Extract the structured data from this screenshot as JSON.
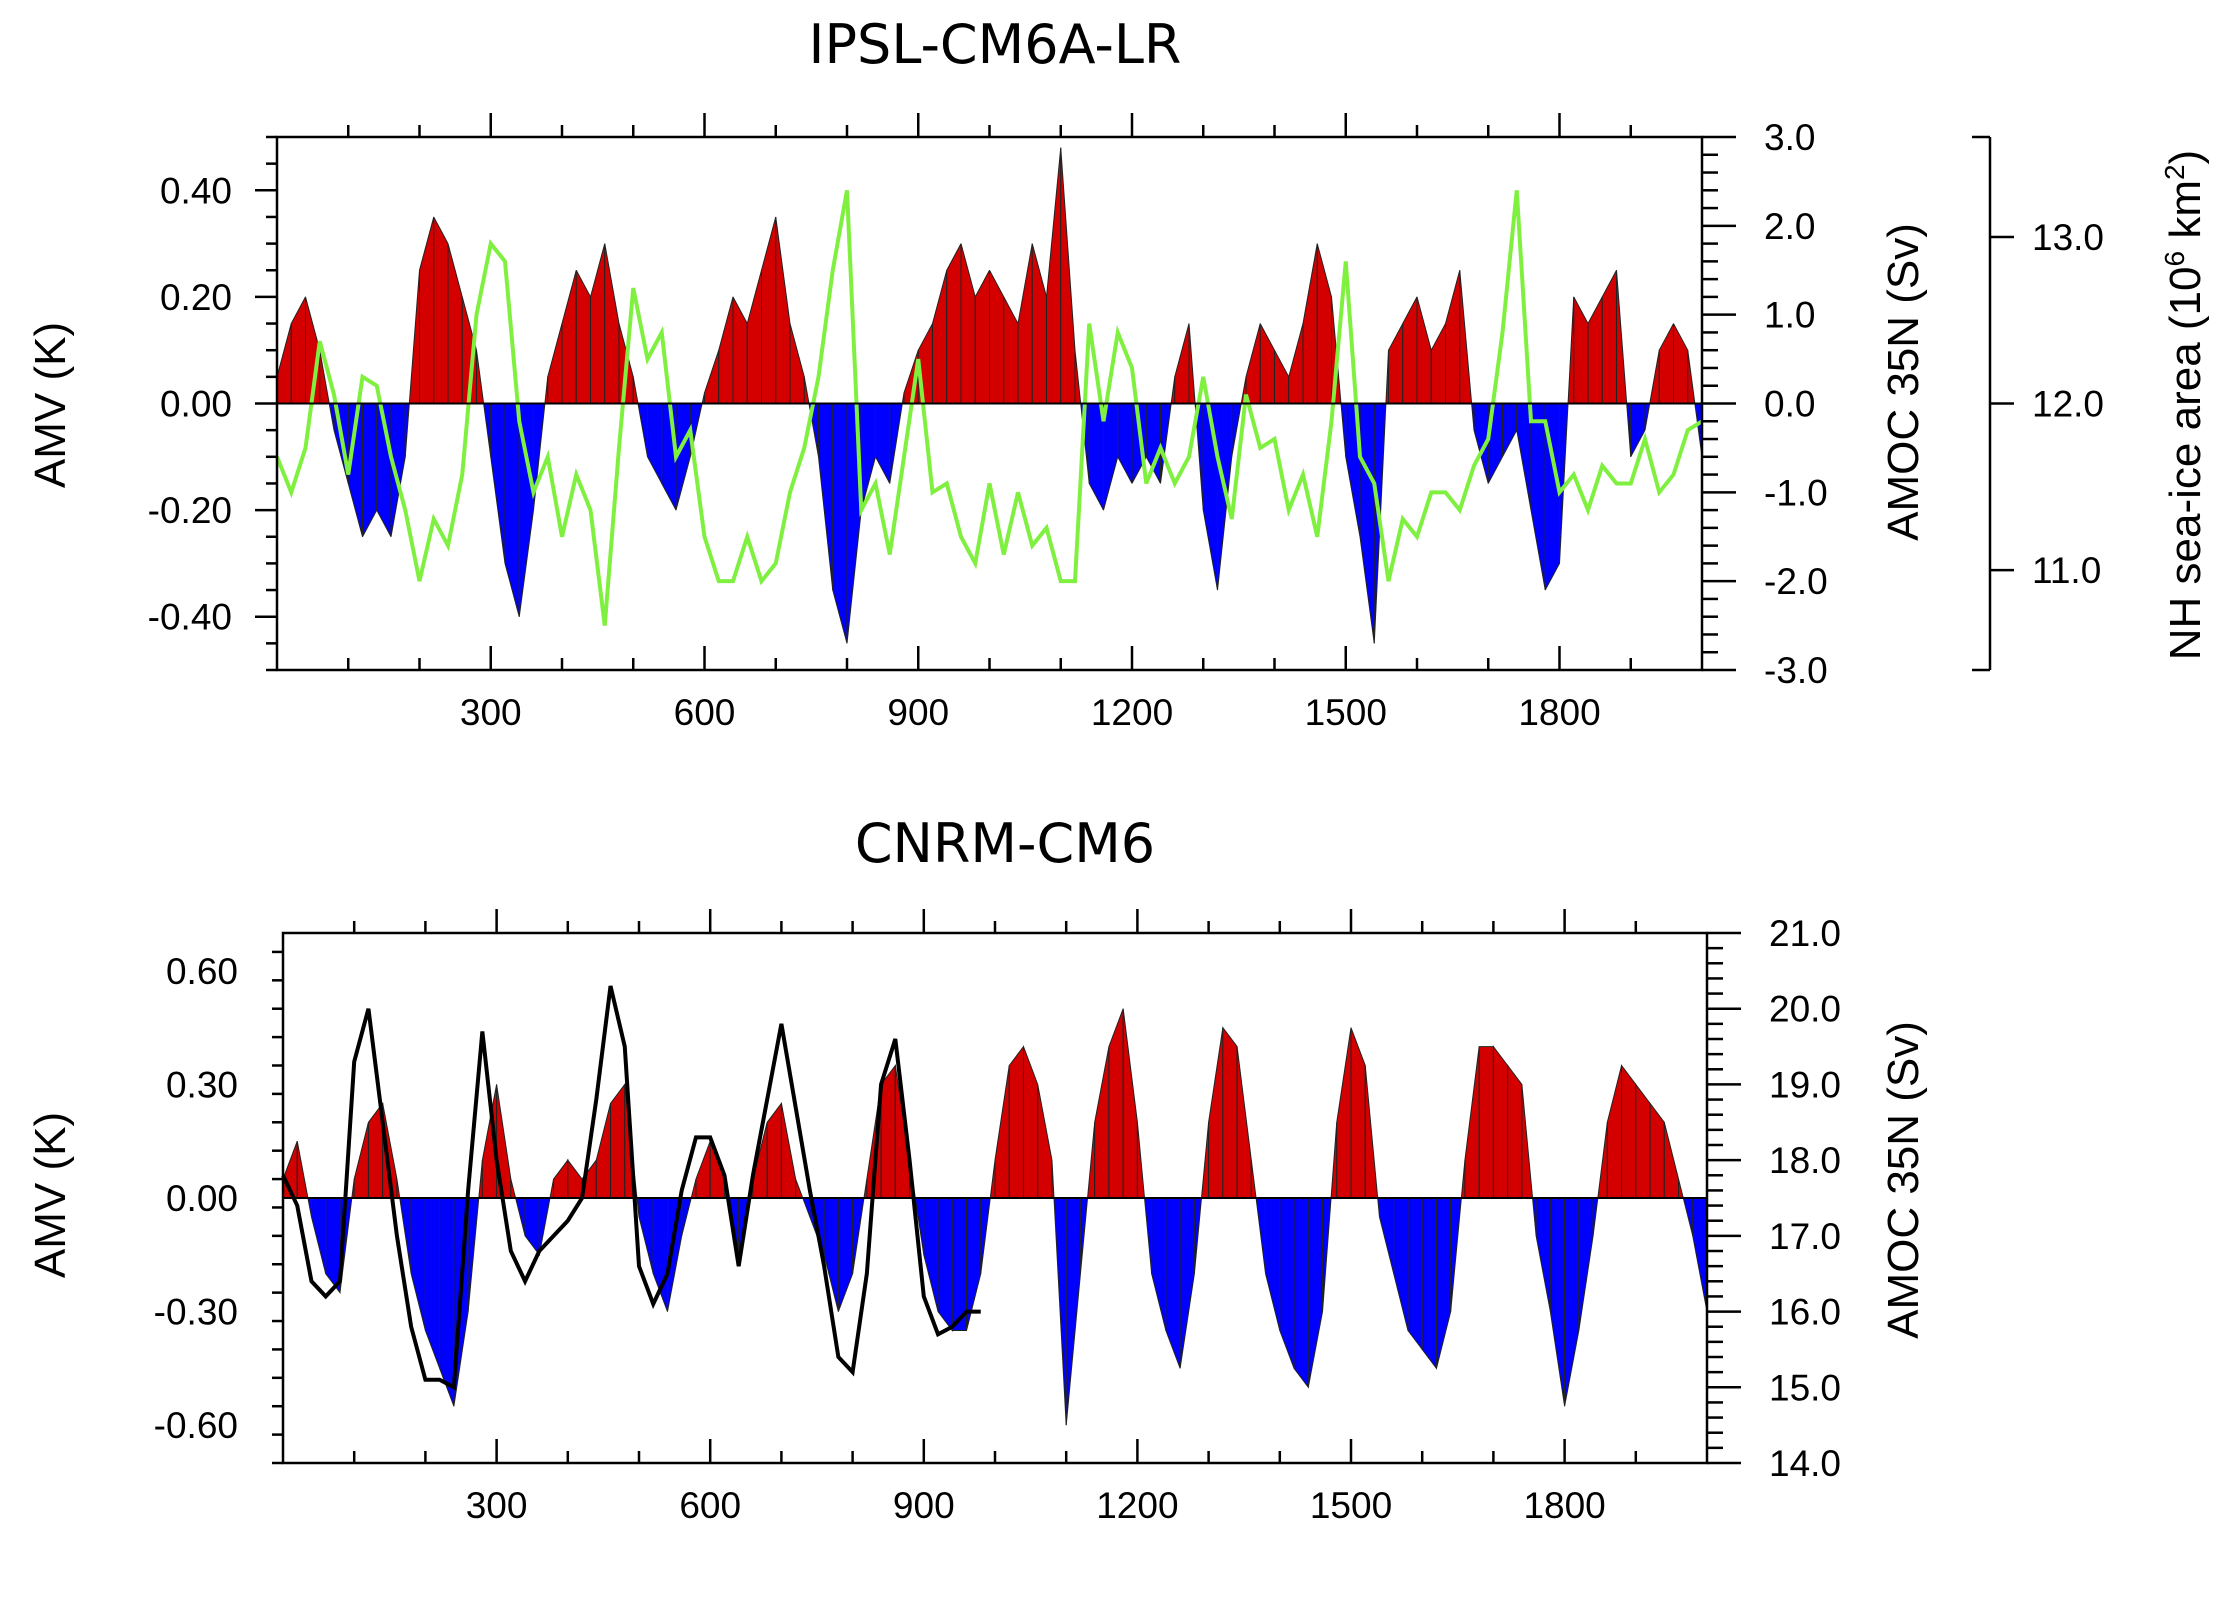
{
  "chart_data": [
    {
      "type": "area",
      "title": "IPSL-CM6A-LR",
      "x_ticks": [
        300,
        600,
        900,
        1200,
        1500,
        1800
      ],
      "xlim": [
        0,
        2000
      ],
      "left_axis": {
        "label": "AMV (K)",
        "ylim": [
          -0.5,
          0.5
        ],
        "ticks": [
          0.4,
          0.2,
          0.0,
          -0.2,
          -0.4
        ],
        "tick_labels": [
          "0.40",
          "0.20",
          "0.00",
          "-0.20",
          "-0.40"
        ]
      },
      "right_axis": {
        "label": "AMOC 35N (Sv)",
        "ylim": [
          -3.0,
          3.0
        ],
        "ticks": [
          3,
          2,
          1,
          0,
          -1,
          -2,
          -3
        ],
        "tick_labels": [
          "3.0",
          "2.0",
          "1.0",
          "0.0",
          "-1.0",
          "-2.0",
          "-3.0"
        ]
      },
      "far_right_axis": {
        "label_main": "NH sea-ice area (10",
        "label_sup": "6",
        "label_end": " km",
        "label_sup2": "2",
        "label_close": ")",
        "ylim": [
          10.4,
          13.6
        ],
        "ticks": [
          13.0,
          12.0,
          11.0
        ],
        "tick_labels": [
          "13.0",
          "12.0",
          "11.0"
        ]
      },
      "series": [
        {
          "style": "filled-anomaly",
          "axis": "left",
          "positive_color": "#d40000",
          "negative_color": "#0000ff",
          "x": [
            0,
            20,
            40,
            60,
            80,
            100,
            120,
            140,
            160,
            180,
            200,
            220,
            240,
            260,
            280,
            300,
            320,
            340,
            360,
            380,
            400,
            420,
            440,
            460,
            480,
            500,
            520,
            540,
            560,
            580,
            600,
            620,
            640,
            660,
            680,
            700,
            720,
            740,
            760,
            780,
            800,
            820,
            840,
            860,
            880,
            900,
            920,
            940,
            960,
            980,
            1000,
            1020,
            1040,
            1060,
            1080,
            1100,
            1120,
            1140,
            1160,
            1180,
            1200,
            1220,
            1240,
            1260,
            1280,
            1300,
            1320,
            1340,
            1360,
            1380,
            1400,
            1420,
            1440,
            1460,
            1480,
            1500,
            1520,
            1540,
            1560,
            1580,
            1600,
            1620,
            1640,
            1660,
            1680,
            1700,
            1720,
            1740,
            1760,
            1780,
            1800,
            1820,
            1840,
            1860,
            1880,
            1900,
            1920,
            1940,
            1960,
            1980,
            2000
          ],
          "values": [
            0.05,
            0.15,
            0.2,
            0.1,
            -0.05,
            -0.15,
            -0.25,
            -0.2,
            -0.25,
            -0.1,
            0.25,
            0.35,
            0.3,
            0.2,
            0.1,
            -0.1,
            -0.3,
            -0.4,
            -0.2,
            0.05,
            0.15,
            0.25,
            0.2,
            0.3,
            0.15,
            0.05,
            -0.1,
            -0.15,
            -0.2,
            -0.1,
            0.02,
            0.1,
            0.2,
            0.15,
            0.25,
            0.35,
            0.15,
            0.05,
            -0.1,
            -0.35,
            -0.45,
            -0.2,
            -0.1,
            -0.15,
            0.02,
            0.1,
            0.15,
            0.25,
            0.3,
            0.2,
            0.25,
            0.2,
            0.15,
            0.3,
            0.2,
            0.48,
            0.1,
            -0.15,
            -0.2,
            -0.1,
            -0.15,
            -0.1,
            -0.15,
            0.05,
            0.15,
            -0.2,
            -0.35,
            -0.1,
            0.05,
            0.15,
            0.1,
            0.05,
            0.15,
            0.3,
            0.2,
            -0.1,
            -0.25,
            -0.45,
            0.1,
            0.15,
            0.2,
            0.1,
            0.15,
            0.25,
            -0.05,
            -0.15,
            -0.1,
            -0.05,
            -0.2,
            -0.35,
            -0.3,
            0.2,
            0.15,
            0.2,
            0.25,
            -0.1,
            -0.05,
            0.1,
            0.15,
            0.1,
            -0.1
          ]
        },
        {
          "style": "line",
          "axis": "right",
          "color": "#80f040",
          "x": [
            0,
            20,
            40,
            60,
            80,
            100,
            120,
            140,
            160,
            180,
            200,
            220,
            240,
            260,
            280,
            300,
            320,
            340,
            360,
            380,
            400,
            420,
            440,
            460,
            480,
            500,
            520,
            540,
            560,
            580,
            600,
            620,
            640,
            660,
            680,
            700,
            720,
            740,
            760,
            780,
            800,
            820,
            840,
            860,
            880,
            900,
            920,
            940,
            960,
            980,
            1000,
            1020,
            1040,
            1060,
            1080,
            1100,
            1120,
            1140,
            1160,
            1180,
            1200,
            1220,
            1240,
            1260,
            1280,
            1300,
            1320,
            1340,
            1360,
            1380,
            1400,
            1420,
            1440,
            1460,
            1480,
            1500,
            1520,
            1540,
            1560,
            1580,
            1600,
            1620,
            1640,
            1660,
            1680,
            1700,
            1720,
            1740,
            1760,
            1780,
            1800,
            1820,
            1840,
            1860,
            1880,
            1900,
            1920,
            1940,
            1960,
            1980,
            2000
          ],
          "values": [
            -0.6,
            -1.0,
            -0.5,
            0.7,
            0.1,
            -0.8,
            0.3,
            0.2,
            -0.6,
            -1.2,
            -2.0,
            -1.3,
            -1.6,
            -0.8,
            1.0,
            1.8,
            1.6,
            -0.2,
            -1.0,
            -0.6,
            -1.5,
            -0.8,
            -1.2,
            -2.5,
            -0.5,
            1.3,
            0.5,
            0.8,
            -0.6,
            -0.3,
            -1.5,
            -2.0,
            -2.0,
            -1.5,
            -2.0,
            -1.8,
            -1.0,
            -0.5,
            0.3,
            1.5,
            2.4,
            -1.2,
            -0.9,
            -1.7,
            -0.6,
            0.5,
            -1.0,
            -0.9,
            -1.5,
            -1.8,
            -0.9,
            -1.7,
            -1.0,
            -1.6,
            -1.4,
            -2.0,
            -2.0,
            0.9,
            -0.2,
            0.8,
            0.4,
            -0.9,
            -0.5,
            -0.9,
            -0.6,
            0.3,
            -0.6,
            -1.3,
            0.1,
            -0.5,
            -0.4,
            -1.2,
            -0.8,
            -1.5,
            -0.2,
            1.6,
            -0.6,
            -0.9,
            -2.0,
            -1.3,
            -1.5,
            -1.0,
            -1.0,
            -1.2,
            -0.7,
            -0.4,
            0.8,
            2.4,
            -0.2,
            -0.2,
            -1.0,
            -0.8,
            -1.2,
            -0.7,
            -0.9,
            -0.9,
            -0.4,
            -1.0,
            -0.8,
            -0.3,
            -0.2
          ]
        }
      ]
    },
    {
      "type": "area",
      "title": "CNRM-CM6",
      "x_ticks": [
        300,
        600,
        900,
        1200,
        1500,
        1800
      ],
      "xlim": [
        0,
        2000
      ],
      "left_axis": {
        "label": "AMV (K)",
        "ylim": [
          -0.7,
          0.7
        ],
        "ticks": [
          0.6,
          0.3,
          0.0,
          -0.3,
          -0.6
        ],
        "tick_labels": [
          "0.60",
          "0.30",
          "0.00",
          "-0.30",
          "-0.60"
        ]
      },
      "right_axis": {
        "label": "AMOC 35N (Sv)",
        "ylim": [
          14.0,
          21.0
        ],
        "ticks": [
          21,
          20,
          19,
          18,
          17,
          16,
          15,
          14
        ],
        "tick_labels": [
          "21.0",
          "20.0",
          "19.0",
          "18.0",
          "17.0",
          "16.0",
          "15.0",
          "14.0"
        ]
      },
      "series": [
        {
          "style": "filled-anomaly",
          "axis": "left",
          "positive_color": "#d40000",
          "negative_color": "#0000ff",
          "x": [
            0,
            20,
            40,
            60,
            80,
            100,
            120,
            140,
            160,
            180,
            200,
            220,
            240,
            260,
            280,
            300,
            320,
            340,
            360,
            380,
            400,
            420,
            440,
            460,
            480,
            500,
            520,
            540,
            560,
            580,
            600,
            620,
            640,
            660,
            680,
            700,
            720,
            740,
            760,
            780,
            800,
            820,
            840,
            860,
            880,
            900,
            920,
            940,
            960,
            980,
            1000,
            1020,
            1040,
            1060,
            1080,
            1100,
            1120,
            1140,
            1160,
            1180,
            1200,
            1220,
            1240,
            1260,
            1280,
            1300,
            1320,
            1340,
            1360,
            1380,
            1400,
            1420,
            1440,
            1460,
            1480,
            1500,
            1520,
            1540,
            1560,
            1580,
            1600,
            1620,
            1640,
            1660,
            1680,
            1700,
            1720,
            1740,
            1760,
            1780,
            1800,
            1820,
            1840,
            1860,
            1880,
            1900,
            1920,
            1940,
            1960,
            1980,
            2000
          ],
          "values": [
            0.05,
            0.15,
            -0.05,
            -0.2,
            -0.25,
            0.05,
            0.2,
            0.25,
            0.05,
            -0.2,
            -0.35,
            -0.45,
            -0.55,
            -0.3,
            0.1,
            0.3,
            0.05,
            -0.1,
            -0.15,
            0.05,
            0.1,
            0.05,
            0.1,
            0.25,
            0.3,
            -0.05,
            -0.2,
            -0.3,
            -0.1,
            0.05,
            0.15,
            0.05,
            -0.15,
            0.05,
            0.2,
            0.25,
            0.05,
            -0.05,
            -0.15,
            -0.3,
            -0.2,
            0.05,
            0.3,
            0.35,
            0.1,
            -0.15,
            -0.3,
            -0.35,
            -0.35,
            -0.2,
            0.1,
            0.35,
            0.4,
            0.3,
            0.1,
            -0.6,
            -0.2,
            0.2,
            0.4,
            0.5,
            0.2,
            -0.2,
            -0.35,
            -0.45,
            -0.2,
            0.2,
            0.45,
            0.4,
            0.1,
            -0.2,
            -0.35,
            -0.45,
            -0.5,
            -0.3,
            0.2,
            0.45,
            0.35,
            -0.05,
            -0.2,
            -0.35,
            -0.4,
            -0.45,
            -0.3,
            0.1,
            0.4,
            0.4,
            0.35,
            0.3,
            -0.1,
            -0.3,
            -0.55,
            -0.35,
            -0.1,
            0.2,
            0.35,
            0.3,
            0.25,
            0.2,
            0.05,
            -0.1,
            -0.3
          ]
        },
        {
          "style": "line",
          "axis": "right",
          "color": "#000000",
          "x": [
            0,
            20,
            40,
            60,
            80,
            100,
            120,
            140,
            160,
            180,
            200,
            220,
            240,
            260,
            280,
            300,
            320,
            340,
            360,
            380,
            400,
            420,
            440,
            460,
            480,
            500,
            520,
            540,
            560,
            580,
            600,
            620,
            640,
            660,
            680,
            700,
            720,
            740,
            760,
            780,
            800,
            820,
            840,
            860,
            880,
            900,
            920,
            940,
            960,
            980
          ],
          "values": [
            17.8,
            17.4,
            16.4,
            16.2,
            16.4,
            19.3,
            20.0,
            18.5,
            17.0,
            15.8,
            15.1,
            15.1,
            15.0,
            17.6,
            19.7,
            18.0,
            16.8,
            16.4,
            16.8,
            17.0,
            17.2,
            17.5,
            18.8,
            20.3,
            19.5,
            16.6,
            16.1,
            16.5,
            17.6,
            18.3,
            18.3,
            17.8,
            16.6,
            17.8,
            18.8,
            19.8,
            18.7,
            17.6,
            16.6,
            15.4,
            15.2,
            16.5,
            19.0,
            19.6,
            18.0,
            16.2,
            15.7,
            15.8,
            16.0,
            16.0
          ]
        }
      ]
    }
  ]
}
